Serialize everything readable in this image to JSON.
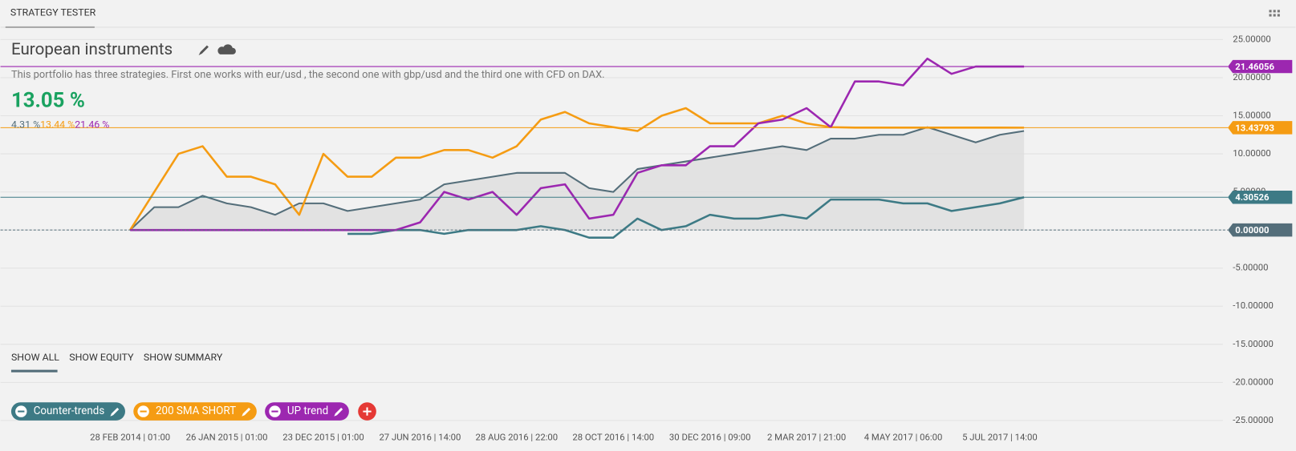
{
  "header": {
    "app_title": "STRATEGY TESTER",
    "portfolio_name": "European instruments",
    "description": "This portfolio has three strategies. First one works with eur/usd , the second one with gbp/usd and the third one with CFD on DAX.",
    "total_return": "13.05 %",
    "returns": [
      "4.31 %",
      "13.44 %",
      "21.46 %"
    ]
  },
  "tabs": [
    "SHOW ALL",
    "SHOW EQUITY",
    "SHOW SUMMARY"
  ],
  "chart_data": {
    "type": "line",
    "categories": [
      "28 FEB 2014 | 01:00",
      null,
      null,
      null,
      "26 JAN 2015 | 01:00",
      null,
      null,
      null,
      "23 DEC 2015 | 01:00",
      null,
      null,
      null,
      "27 JUN 2016 | 14:00",
      null,
      null,
      null,
      "28 AUG 2016 | 22:00",
      null,
      null,
      null,
      "28 OCT 2016 | 14:00",
      null,
      null,
      null,
      "30 DEC 2016 | 09:00",
      null,
      null,
      null,
      "2 MAR 2017 | 21:00",
      null,
      null,
      null,
      "4 MAY 2017 | 06:00",
      null,
      null,
      null,
      "5 JUL 2017 | 14:00",
      null
    ],
    "series": [
      {
        "name": "Counter-trends",
        "color": "#3d7a85",
        "values": [
          null,
          null,
          null,
          null,
          null,
          null,
          null,
          null,
          null,
          -0.5,
          -0.5,
          0,
          0,
          -0.5,
          0,
          0,
          0,
          0.5,
          0,
          -1,
          -1,
          1.5,
          0,
          0.5,
          2,
          1.5,
          1.5,
          2,
          1.5,
          4,
          4,
          4,
          3.5,
          3.5,
          2.5,
          3,
          3.5,
          4.30526
        ]
      },
      {
        "name": "200 SMA SHORT",
        "color": "#f59c13",
        "values": [
          0,
          5,
          10,
          11,
          7,
          7,
          6,
          2,
          10,
          7,
          7,
          9.5,
          9.5,
          10.5,
          10.5,
          9.5,
          11,
          14.5,
          15.5,
          14,
          13.5,
          13,
          15,
          16,
          14,
          14,
          14,
          15,
          14,
          13.5,
          13.44,
          13.44,
          13.44,
          13.44,
          13.44,
          13.44,
          13.44,
          13.43793
        ]
      },
      {
        "name": "UP trend",
        "color": "#9c27b0",
        "values": [
          0,
          0,
          0,
          0,
          0,
          0,
          0,
          0,
          0,
          0,
          0,
          0,
          1,
          5,
          4,
          5,
          2,
          5.5,
          6,
          1.5,
          2,
          7.5,
          8.5,
          8.5,
          11,
          11,
          14,
          14.5,
          16,
          13.5,
          19.5,
          19.5,
          19,
          22.5,
          20.5,
          21.46056,
          21.46056,
          21.46056
        ]
      }
    ],
    "equity": {
      "color": "#546e7a",
      "values": [
        0,
        3,
        3,
        4.5,
        3.5,
        3,
        2,
        3.5,
        3.5,
        2.5,
        3,
        3.5,
        4,
        6,
        6.5,
        7,
        7.5,
        7.5,
        7.5,
        5.5,
        5,
        8,
        8.5,
        9,
        9.5,
        10,
        10.5,
        11,
        10.5,
        12,
        12,
        12.5,
        12.5,
        13.5,
        12.5,
        11.5,
        12.5,
        13
      ]
    },
    "markers": [
      {
        "value": 21.46056,
        "color": "#9c27b0"
      },
      {
        "value": 13.43793,
        "color": "#f59c13"
      },
      {
        "value": 4.30526,
        "color": "#3d7a85"
      },
      {
        "value": 0,
        "label": "0.00000",
        "color": "#546e7a"
      }
    ],
    "ylim": [
      -25,
      25
    ],
    "yticks": [
      {
        "value": -25,
        "label": "-25.00000"
      },
      {
        "value": -20,
        "label": "-20.00000"
      },
      {
        "value": -15,
        "label": "-15.00000"
      },
      {
        "value": -10,
        "label": "-10.00000"
      },
      {
        "value": -5,
        "label": "-5.00000"
      },
      {
        "value": 0,
        "label": "0.00000"
      },
      {
        "value": 5,
        "label": "5.00000"
      },
      {
        "value": 10,
        "label": "10.00000"
      },
      {
        "value": 15,
        "label": "15.00000"
      },
      {
        "value": 20,
        "label": "20.00000"
      },
      {
        "value": 25,
        "label": "25.00000"
      }
    ],
    "grid": true
  }
}
